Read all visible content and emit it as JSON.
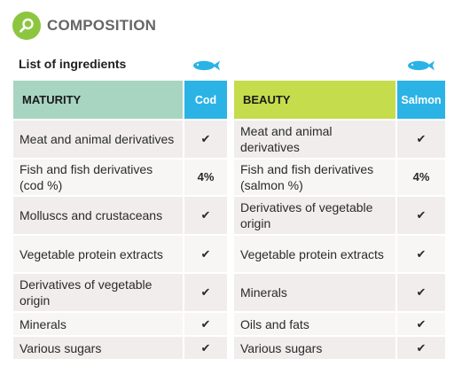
{
  "header": {
    "icon": "search-icon",
    "title": "COMPOSITION",
    "accent": "#8cc63f"
  },
  "subtitle": "List of ingredients",
  "left_table": {
    "name": "MATURITY",
    "brand": "Cod",
    "rows": [
      {
        "ingredient": "Meat and animal derivatives",
        "value": "✔"
      },
      {
        "ingredient": "Fish and fish derivatives (cod %)",
        "value": "4%"
      },
      {
        "ingredient": "Molluscs and crustaceans",
        "value": "✔"
      },
      {
        "ingredient": "Vegetable protein extracts",
        "value": "✔"
      },
      {
        "ingredient": "Derivatives of vegetable origin",
        "value": "✔"
      },
      {
        "ingredient": "Minerals",
        "value": "✔"
      },
      {
        "ingredient": "Various sugars",
        "value": "✔"
      }
    ]
  },
  "right_table": {
    "name": "BEAUTY",
    "brand": "Salmon",
    "rows": [
      {
        "ingredient": "Meat and animal derivatives",
        "value": "✔"
      },
      {
        "ingredient": "Fish and fish derivatives (salmon %)",
        "value": "4%"
      },
      {
        "ingredient": "Derivatives of vegetable origin",
        "value": "✔"
      },
      {
        "ingredient": "Vegetable protein extracts",
        "value": "✔"
      },
      {
        "ingredient": "Minerals",
        "value": "✔"
      },
      {
        "ingredient": "Oils and fats",
        "value": "✔"
      },
      {
        "ingredient": "Various sugars",
        "value": "✔"
      }
    ]
  },
  "colors": {
    "maturity": "#a8d5c2",
    "beauty": "#c5dc4c",
    "brand": "#2bb3e6"
  },
  "icons": {
    "left_fish": "fish-icon",
    "right_fish": "fish-icon"
  }
}
